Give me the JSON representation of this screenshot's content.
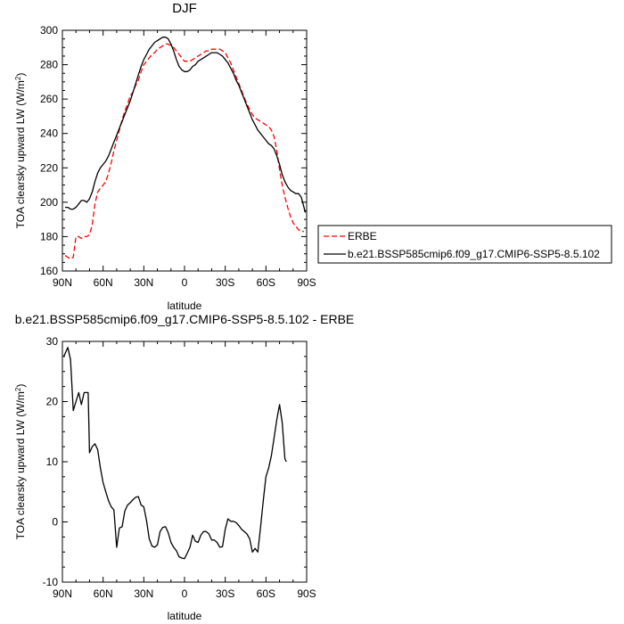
{
  "chart_data": [
    {
      "type": "line",
      "title": "DJF",
      "xlabel": "latitude",
      "ylabel": "TOA clearsky upward LW (W/m",
      "ylabel_sup": "2",
      "ylabel_tail": ")",
      "xlim": [
        90,
        -90
      ],
      "ylim": [
        160,
        300
      ],
      "x_ticks": [
        {
          "value": 90,
          "label": "90N"
        },
        {
          "value": 60,
          "label": "60N"
        },
        {
          "value": 30,
          "label": "30N"
        },
        {
          "value": 0,
          "label": "0"
        },
        {
          "value": -30,
          "label": "30S"
        },
        {
          "value": -60,
          "label": "60S"
        },
        {
          "value": -90,
          "label": "90S"
        }
      ],
      "y_ticks": [
        160,
        180,
        200,
        220,
        240,
        260,
        280,
        300
      ],
      "legend_position": "right",
      "series": [
        {
          "name": "ERBE",
          "color": "#ff0000",
          "dash": "dashed",
          "points": [
            [
              88,
              169
            ],
            [
              86,
              168
            ],
            [
              84,
              167
            ],
            [
              82,
              168
            ],
            [
              80,
              180
            ],
            [
              78,
              180
            ],
            [
              76,
              179
            ],
            [
              74,
              180
            ],
            [
              72,
              180
            ],
            [
              70,
              181
            ],
            [
              68,
              187
            ],
            [
              66,
              199
            ],
            [
              64,
              206
            ],
            [
              62,
              208
            ],
            [
              60,
              210
            ],
            [
              58,
              212
            ],
            [
              56,
              217
            ],
            [
              54,
              223
            ],
            [
              52,
              230
            ],
            [
              50,
              236
            ],
            [
              48,
              242
            ],
            [
              46,
              248
            ],
            [
              44,
              253
            ],
            [
              42,
              257
            ],
            [
              40,
              262
            ],
            [
              38,
              264
            ],
            [
              36,
              268
            ],
            [
              34,
              271
            ],
            [
              32,
              276
            ],
            [
              30,
              280
            ],
            [
              28,
              282
            ],
            [
              26,
              284
            ],
            [
              24,
              286
            ],
            [
              22,
              287
            ],
            [
              20,
              289
            ],
            [
              18,
              290
            ],
            [
              16,
              291
            ],
            [
              14,
              292
            ],
            [
              12,
              292
            ],
            [
              10,
              291
            ],
            [
              8,
              290
            ],
            [
              6,
              288
            ],
            [
              4,
              286
            ],
            [
              2,
              284
            ],
            [
              0,
              282
            ],
            [
              -2,
              282
            ],
            [
              -4,
              282
            ],
            [
              -6,
              283
            ],
            [
              -8,
              284
            ],
            [
              -10,
              285
            ],
            [
              -12,
              286
            ],
            [
              -14,
              287
            ],
            [
              -16,
              288
            ],
            [
              -18,
              288
            ],
            [
              -20,
              289
            ],
            [
              -22,
              289
            ],
            [
              -24,
              289
            ],
            [
              -26,
              289
            ],
            [
              -28,
              288
            ],
            [
              -30,
              287
            ],
            [
              -32,
              284
            ],
            [
              -34,
              281
            ],
            [
              -36,
              277
            ],
            [
              -38,
              273
            ],
            [
              -40,
              269
            ],
            [
              -42,
              265
            ],
            [
              -44,
              261
            ],
            [
              -46,
              257
            ],
            [
              -48,
              254
            ],
            [
              -50,
              251
            ],
            [
              -52,
              249
            ],
            [
              -54,
              248
            ],
            [
              -56,
              247
            ],
            [
              -58,
              246
            ],
            [
              -60,
              245
            ],
            [
              -62,
              244
            ],
            [
              -64,
              242
            ],
            [
              -66,
              238
            ],
            [
              -68,
              230
            ],
            [
              -70,
              219
            ],
            [
              -72,
              210
            ],
            [
              -74,
              203
            ],
            [
              -76,
              197
            ],
            [
              -78,
              192
            ],
            [
              -80,
              188
            ],
            [
              -82,
              186
            ],
            [
              -84,
              184
            ],
            [
              -86,
              183
            ],
            [
              -88,
              183
            ]
          ]
        },
        {
          "name": "b.e21.BSSP585cmip6.f09_g17.CMIP6-SSP5-8.5.102",
          "color": "#000000",
          "dash": "solid",
          "points": [
            [
              88,
              197
            ],
            [
              86,
              197
            ],
            [
              84,
              196
            ],
            [
              82,
              196
            ],
            [
              80,
              197
            ],
            [
              78,
              199
            ],
            [
              76,
              201
            ],
            [
              74,
              201
            ],
            [
              72,
              200
            ],
            [
              70,
              202
            ],
            [
              68,
              206
            ],
            [
              66,
              212
            ],
            [
              64,
              217
            ],
            [
              62,
              220
            ],
            [
              60,
              222
            ],
            [
              58,
              224
            ],
            [
              56,
              227
            ],
            [
              54,
              231
            ],
            [
              52,
              235
            ],
            [
              50,
              239
            ],
            [
              48,
              243
            ],
            [
              46,
              247
            ],
            [
              44,
              251
            ],
            [
              42,
              255
            ],
            [
              40,
              259
            ],
            [
              38,
              264
            ],
            [
              36,
              269
            ],
            [
              34,
              274
            ],
            [
              32,
              279
            ],
            [
              30,
              283
            ],
            [
              28,
              286
            ],
            [
              26,
              289
            ],
            [
              24,
              291
            ],
            [
              22,
              293
            ],
            [
              20,
              294
            ],
            [
              18,
              295
            ],
            [
              16,
              296
            ],
            [
              14,
              296
            ],
            [
              12,
              295
            ],
            [
              10,
              292
            ],
            [
              8,
              288
            ],
            [
              6,
              283
            ],
            [
              4,
              279
            ],
            [
              2,
              277
            ],
            [
              0,
              276
            ],
            [
              -2,
              276
            ],
            [
              -4,
              277
            ],
            [
              -6,
              279
            ],
            [
              -8,
              280
            ],
            [
              -10,
              282
            ],
            [
              -12,
              283
            ],
            [
              -14,
              284
            ],
            [
              -16,
              285
            ],
            [
              -18,
              286
            ],
            [
              -20,
              287
            ],
            [
              -22,
              287
            ],
            [
              -24,
              287
            ],
            [
              -26,
              286
            ],
            [
              -28,
              285
            ],
            [
              -30,
              283
            ],
            [
              -32,
              281
            ],
            [
              -34,
              278
            ],
            [
              -36,
              275
            ],
            [
              -38,
              271
            ],
            [
              -40,
              268
            ],
            [
              -42,
              264
            ],
            [
              -44,
              260
            ],
            [
              -46,
              256
            ],
            [
              -48,
              252
            ],
            [
              -50,
              248
            ],
            [
              -52,
              245
            ],
            [
              -54,
              242
            ],
            [
              -56,
              240
            ],
            [
              -58,
              238
            ],
            [
              -60,
              236
            ],
            [
              -62,
              234
            ],
            [
              -64,
              233
            ],
            [
              -66,
              231
            ],
            [
              -68,
              227
            ],
            [
              -70,
              222
            ],
            [
              -72,
              216
            ],
            [
              -74,
              212
            ],
            [
              -76,
              209
            ],
            [
              -78,
              207
            ],
            [
              -80,
              206
            ],
            [
              -82,
              205
            ],
            [
              -84,
              205
            ],
            [
              -86,
              203
            ],
            [
              -88,
              197
            ],
            [
              -89,
              194
            ]
          ]
        }
      ]
    },
    {
      "type": "line",
      "title": "b.e21.BSSP585cmip6.f09_g17.CMIP6-SSP5-8.5.102 - ERBE",
      "xlabel": "latitude",
      "ylabel": "TOA clearsky upward LW (W/m",
      "ylabel_sup": "2",
      "ylabel_tail": ")",
      "xlim": [
        90,
        -90
      ],
      "ylim": [
        -10,
        30
      ],
      "x_ticks": [
        {
          "value": 90,
          "label": "90N"
        },
        {
          "value": 60,
          "label": "60N"
        },
        {
          "value": 30,
          "label": "30N"
        },
        {
          "value": 0,
          "label": "0"
        },
        {
          "value": -30,
          "label": "30S"
        },
        {
          "value": -60,
          "label": "60S"
        },
        {
          "value": -90,
          "label": "90S"
        }
      ],
      "y_ticks": [
        -10,
        0,
        10,
        20,
        30
      ],
      "series": [
        {
          "color": "#000000",
          "dash": "solid",
          "points": [
            [
              89,
              27.5
            ],
            [
              86,
              29
            ],
            [
              84,
              27
            ],
            [
              82,
              18.5
            ],
            [
              80,
              20
            ],
            [
              78,
              21.5
            ],
            [
              76,
              19.5
            ],
            [
              74,
              21.5
            ],
            [
              71,
              21.5
            ],
            [
              70,
              11.5
            ],
            [
              68,
              12.5
            ],
            [
              66,
              13
            ],
            [
              64,
              12
            ],
            [
              62,
              9
            ],
            [
              60,
              6.5
            ],
            [
              58,
              5
            ],
            [
              56,
              3.5
            ],
            [
              54,
              2.5
            ],
            [
              52,
              2
            ],
            [
              50,
              -4.2
            ],
            [
              48,
              -1
            ],
            [
              46,
              -0.8
            ],
            [
              44,
              1.8
            ],
            [
              42,
              2.8
            ],
            [
              40,
              3.2
            ],
            [
              38,
              3.7
            ],
            [
              36,
              4.1
            ],
            [
              34,
              4.2
            ],
            [
              32,
              2.8
            ],
            [
              30,
              2.5
            ],
            [
              28,
              0.2
            ],
            [
              26,
              -2.8
            ],
            [
              24,
              -4
            ],
            [
              22,
              -4.2
            ],
            [
              20,
              -3.8
            ],
            [
              18,
              -1.6
            ],
            [
              16,
              -0.9
            ],
            [
              14,
              -0.8
            ],
            [
              12,
              -1.8
            ],
            [
              10,
              -3.4
            ],
            [
              8,
              -4.2
            ],
            [
              6,
              -4.8
            ],
            [
              4,
              -5.8
            ],
            [
              2,
              -6.0
            ],
            [
              0,
              -6.1
            ],
            [
              -2,
              -5.2
            ],
            [
              -4,
              -4.2
            ],
            [
              -6,
              -2.2
            ],
            [
              -8,
              -3.2
            ],
            [
              -10,
              -3.4
            ],
            [
              -12,
              -2.2
            ],
            [
              -14,
              -1.6
            ],
            [
              -16,
              -1.6
            ],
            [
              -18,
              -2.0
            ],
            [
              -20,
              -3.0
            ],
            [
              -22,
              -3.0
            ],
            [
              -24,
              -3.4
            ],
            [
              -26,
              -4.2
            ],
            [
              -28,
              -4.1
            ],
            [
              -30,
              -1.2
            ],
            [
              -32,
              0.5
            ],
            [
              -34,
              0.1
            ],
            [
              -36,
              0.1
            ],
            [
              -38,
              -0.1
            ],
            [
              -40,
              -0.6
            ],
            [
              -42,
              -1.2
            ],
            [
              -44,
              -1.6
            ],
            [
              -46,
              -2.0
            ],
            [
              -48,
              -2.8
            ],
            [
              -50,
              -5.0
            ],
            [
              -52,
              -4.4
            ],
            [
              -54,
              -5.0
            ],
            [
              -56,
              -1.0
            ],
            [
              -58,
              3.5
            ],
            [
              -60,
              7.5
            ],
            [
              -62,
              9.0
            ],
            [
              -64,
              11.0
            ],
            [
              -66,
              14.0
            ],
            [
              -68,
              17.0
            ],
            [
              -70,
              19.5
            ],
            [
              -72,
              16.5
            ],
            [
              -74,
              10.5
            ],
            [
              -75,
              10
            ]
          ]
        }
      ]
    }
  ]
}
